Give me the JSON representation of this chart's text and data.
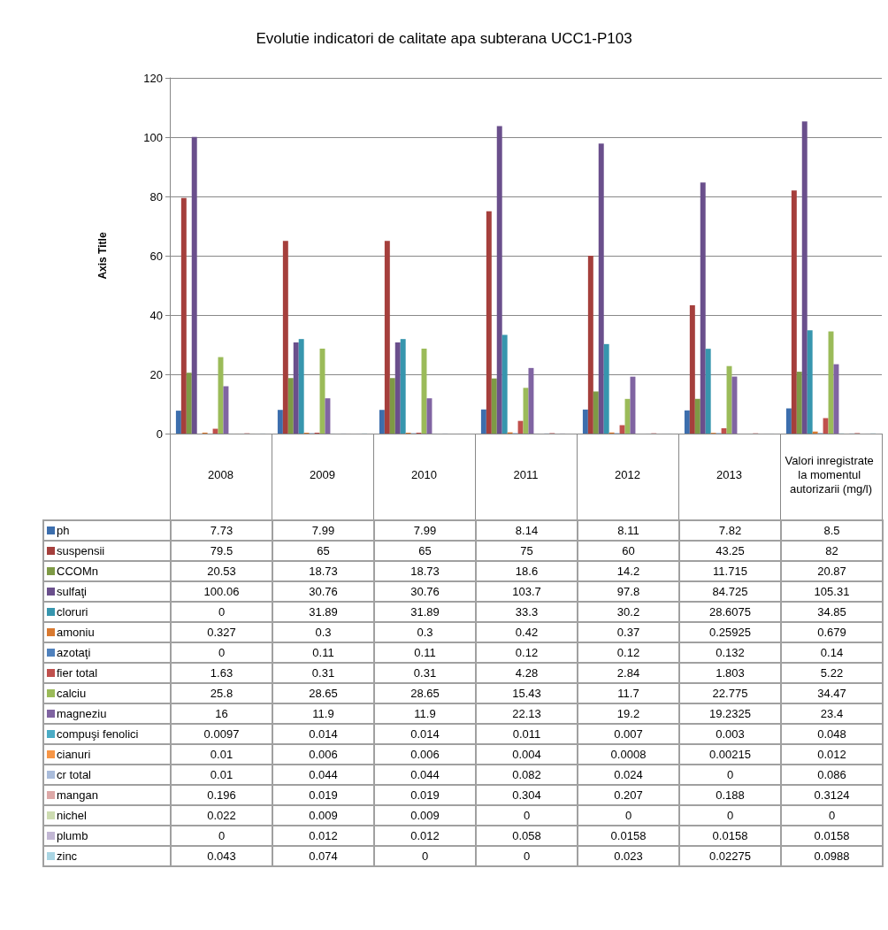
{
  "chart_data": {
    "type": "bar",
    "title": "Evolutie indicatori de calitate apa subterana UCC1-P103",
    "ylabel": "Axis Title",
    "categories": [
      "2008",
      "2009",
      "2010",
      "2011",
      "2012",
      "2013",
      "Valori inregistrate la momentul autorizarii (mg/l)"
    ],
    "ylim": [
      0,
      120
    ],
    "yticks": [
      0,
      20,
      40,
      60,
      80,
      100,
      120
    ],
    "grid": "y",
    "data_labels": true,
    "legend": "bottom left",
    "series": [
      {
        "name": "ph",
        "color": "#3c6ead",
        "values": [
          7.73,
          7.99,
          7.99,
          8.14,
          8.11,
          7.82,
          8.5
        ]
      },
      {
        "name": "suspensii",
        "color": "#a53f3c",
        "values": [
          79.5,
          65,
          65,
          75,
          60,
          43.25,
          82
        ]
      },
      {
        "name": "CCOMn",
        "color": "#7e9a45",
        "values": [
          20.53,
          18.73,
          18.73,
          18.6,
          14.2,
          11.715,
          20.87
        ]
      },
      {
        "name": "sulfaţi",
        "color": "#6a4f8c",
        "values": [
          100.06,
          30.76,
          30.76,
          103.7,
          97.8,
          84.725,
          105.31
        ]
      },
      {
        "name": "cloruri",
        "color": "#3796ae",
        "values": [
          0,
          31.89,
          31.89,
          33.3,
          30.2,
          28.6075,
          34.85
        ]
      },
      {
        "name": "amoniu",
        "color": "#d9792f",
        "values": [
          0.327,
          0.3,
          0.3,
          0.42,
          0.37,
          0.25925,
          0.679
        ]
      },
      {
        "name": "azotaţi",
        "color": "#4f81bd",
        "values": [
          0,
          0.11,
          0.11,
          0.12,
          0.12,
          0.132,
          0.14
        ]
      },
      {
        "name": "fier total",
        "color": "#c0504d",
        "values": [
          1.63,
          0.31,
          0.31,
          4.28,
          2.84,
          1.803,
          5.22
        ]
      },
      {
        "name": "calciu",
        "color": "#9bbb59",
        "values": [
          25.8,
          28.65,
          28.65,
          15.43,
          11.7,
          22.775,
          34.47
        ]
      },
      {
        "name": "magneziu",
        "color": "#8064a2",
        "values": [
          16,
          11.9,
          11.9,
          22.13,
          19.2,
          19.2325,
          23.4
        ]
      },
      {
        "name": "compuşi fenolici",
        "color": "#4bacc6",
        "values": [
          0.0097,
          0.014,
          0.014,
          0.011,
          0.007,
          0.003,
          0.048
        ]
      },
      {
        "name": "cianuri",
        "color": "#f79646",
        "values": [
          0.01,
          0.006,
          0.006,
          0.004,
          0.0008,
          0.00215,
          0.012
        ]
      },
      {
        "name": "cr total",
        "color": "#a9bcdb",
        "values": [
          0.01,
          0.044,
          0.044,
          0.082,
          0.024,
          0,
          0.086
        ]
      },
      {
        "name": "mangan",
        "color": "#dda8a7",
        "values": [
          0.196,
          0.019,
          0.019,
          0.304,
          0.207,
          0.188,
          0.3124
        ]
      },
      {
        "name": "nichel",
        "color": "#cddcb1",
        "values": [
          0.022,
          0.009,
          0.009,
          0,
          0,
          0,
          0
        ]
      },
      {
        "name": "plumb",
        "color": "#c2b7d4",
        "values": [
          0,
          0.012,
          0.012,
          0.058,
          0.0158,
          0.0158,
          0.0158
        ]
      },
      {
        "name": "zinc",
        "color": "#a9d5e3",
        "values": [
          0.043,
          0.074,
          0,
          0,
          0.023,
          0.02275,
          0.0988
        ]
      }
    ]
  }
}
